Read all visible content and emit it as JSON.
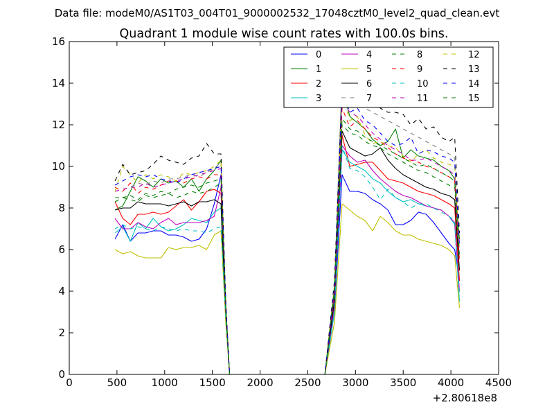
{
  "header": {
    "suptitle": "Data file: modeM0/AS1T03_004T01_9000002532_17048cztM0_level2_quad_clean.evt"
  },
  "chart_data": {
    "type": "line",
    "title": "Quadrant 1 module wise count rates with 100.0s bins.",
    "xlabel": "",
    "ylabel": "",
    "xlim": [
      0,
      4500
    ],
    "ylim": [
      0,
      16
    ],
    "x_ticks": [
      0,
      500,
      1000,
      1500,
      2000,
      2500,
      3000,
      3500,
      4000,
      4500
    ],
    "y_ticks": [
      0,
      2,
      4,
      6,
      8,
      10,
      12,
      14,
      16
    ],
    "x_tick_labels": [
      "0",
      "500",
      "1000",
      "1500",
      "2000",
      "2500",
      "3000",
      "3500",
      "4000",
      "4500"
    ],
    "y_tick_labels": [
      "0",
      "2",
      "4",
      "6",
      "8",
      "10",
      "12",
      "14",
      "16"
    ],
    "x_offset_label": "+2.80618e8",
    "grid": false,
    "legend_position": "top-right",
    "legend_columns": 4,
    "x": [
      480,
      560,
      640,
      720,
      800,
      880,
      960,
      1040,
      1120,
      1200,
      1280,
      1360,
      1440,
      1520,
      1590,
      1640,
      1680,
      2680,
      2780,
      2860,
      2940,
      3020,
      3100,
      3180,
      3260,
      3340,
      3420,
      3500,
      3580,
      3660,
      3740,
      3820,
      3900,
      3980,
      4040,
      4090
    ],
    "series": [
      {
        "name": "0",
        "color": "#0000ff",
        "dashed": false,
        "values": [
          6.5,
          7.2,
          6.4,
          6.8,
          6.8,
          6.9,
          6.9,
          6.7,
          6.7,
          6.6,
          6.4,
          6.5,
          7.0,
          8.2,
          9.6,
          3.0,
          0,
          0,
          3.0,
          9.6,
          8.8,
          8.8,
          8.7,
          8.4,
          8.2,
          7.9,
          7.2,
          7.2,
          7.4,
          7.8,
          7.7,
          7.3,
          6.8,
          6.3,
          6.0,
          4.5
        ]
      },
      {
        "name": "1",
        "color": "#008000",
        "dashed": false,
        "values": [
          7.9,
          8.1,
          8.8,
          9.5,
          9.3,
          9.0,
          9.4,
          9.2,
          9.3,
          9.0,
          9.4,
          8.8,
          9.4,
          9.8,
          10.3,
          3.3,
          0,
          0,
          4.0,
          13.8,
          12.4,
          12.1,
          11.8,
          11.3,
          11.0,
          11.2,
          11.8,
          10.4,
          10.8,
          10.5,
          10.4,
          10.3,
          10.0,
          9.8,
          9.4,
          6.5
        ]
      },
      {
        "name": "2",
        "color": "#ff0000",
        "dashed": false,
        "values": [
          8.3,
          7.5,
          7.2,
          7.7,
          7.7,
          7.8,
          7.7,
          7.8,
          8.1,
          8.4,
          7.9,
          8.3,
          8.8,
          8.9,
          8.7,
          3.0,
          0,
          0,
          3.5,
          11.5,
          10.0,
          10.1,
          10.2,
          10.2,
          9.8,
          9.4,
          9.3,
          9.2,
          9.0,
          8.8,
          8.7,
          8.6,
          8.4,
          8.2,
          8.0,
          4.5
        ]
      },
      {
        "name": "3",
        "color": "#00bfbf",
        "dashed": false,
        "values": [
          6.8,
          7.1,
          6.4,
          7.3,
          7.0,
          7.5,
          7.1,
          6.9,
          7.0,
          7.2,
          7.5,
          7.4,
          7.3,
          7.8,
          8.0,
          2.8,
          0,
          0,
          3.0,
          10.8,
          10.2,
          10.0,
          9.8,
          9.4,
          9.2,
          8.8,
          8.5,
          8.3,
          8.4,
          8.2,
          8.1,
          8.0,
          7.9,
          7.6,
          7.2,
          3.5
        ]
      },
      {
        "name": "4",
        "color": "#bf00bf",
        "dashed": false,
        "values": [
          7.5,
          7.0,
          7.0,
          7.3,
          7.1,
          7.0,
          7.3,
          7.5,
          7.2,
          7.3,
          7.3,
          7.3,
          7.4,
          7.6,
          9.0,
          3.1,
          0,
          0,
          3.3,
          11.0,
          10.5,
          10.2,
          10.3,
          9.8,
          9.4,
          9.1,
          8.8,
          8.6,
          8.5,
          8.3,
          8.1,
          8.0,
          7.9,
          7.6,
          7.3,
          4.0
        ]
      },
      {
        "name": "5",
        "color": "#bfbf00",
        "dashed": false,
        "values": [
          6.0,
          5.8,
          5.9,
          5.7,
          5.6,
          5.6,
          5.6,
          6.1,
          6.0,
          6.1,
          6.1,
          6.2,
          6.0,
          6.7,
          6.9,
          2.5,
          0,
          0,
          2.5,
          8.2,
          7.9,
          7.6,
          7.4,
          6.9,
          7.6,
          7.3,
          6.9,
          6.7,
          6.7,
          6.5,
          6.4,
          6.3,
          6.2,
          6.0,
          5.7,
          3.2
        ]
      },
      {
        "name": "6",
        "color": "#000000",
        "dashed": false,
        "values": [
          7.9,
          8.0,
          8.0,
          8.3,
          8.2,
          8.2,
          8.2,
          8.1,
          8.2,
          8.3,
          8.1,
          8.3,
          8.3,
          8.4,
          8.2,
          2.9,
          0,
          0,
          3.6,
          11.7,
          10.9,
          10.7,
          10.5,
          10.6,
          10.9,
          10.3,
          9.9,
          9.6,
          9.4,
          9.2,
          9.0,
          8.9,
          8.7,
          8.6,
          8.4,
          5.0
        ]
      },
      {
        "name": "7",
        "color": "#808080",
        "dashed": true,
        "values": [
          8.8,
          8.9,
          9.0,
          9.2,
          9.1,
          9.3,
          9.2,
          9.4,
          9.4,
          9.5,
          9.6,
          9.5,
          9.7,
          9.9,
          10.2,
          3.4,
          0,
          0,
          4.2,
          14.5,
          13.2,
          13.1,
          12.8,
          12.6,
          12.4,
          12.2,
          12.0,
          11.8,
          11.6,
          11.4,
          11.2,
          11.0,
          10.8,
          10.6,
          10.4,
          6.5
        ]
      },
      {
        "name": "8",
        "color": "#008000",
        "dashed": true,
        "values": [
          8.5,
          8.5,
          8.4,
          8.3,
          8.6,
          8.5,
          8.6,
          8.7,
          8.5,
          8.6,
          8.8,
          8.7,
          8.8,
          9.0,
          9.2,
          3.1,
          0,
          0,
          3.9,
          12.0,
          11.6,
          11.5,
          11.2,
          11.0,
          10.9,
          10.6,
          10.4,
          10.2,
          10.0,
          9.8,
          9.7,
          9.5,
          9.3,
          9.1,
          9.0,
          5.5
        ]
      },
      {
        "name": "9",
        "color": "#ff0000",
        "dashed": true,
        "values": [
          9.0,
          8.8,
          9.2,
          8.7,
          9.0,
          8.9,
          9.1,
          9.3,
          9.3,
          9.2,
          9.4,
          9.5,
          9.4,
          9.6,
          9.6,
          3.3,
          0,
          0,
          4.0,
          12.8,
          11.9,
          12.2,
          11.8,
          11.4,
          11.2,
          10.9,
          10.6,
          10.4,
          10.3,
          10.2,
          10.0,
          9.9,
          9.7,
          9.5,
          9.3,
          5.4
        ]
      },
      {
        "name": "10",
        "color": "#00bfbf",
        "dashed": true,
        "values": [
          7.0,
          7.2,
          7.0,
          7.1,
          7.0,
          6.9,
          7.1,
          7.0,
          6.9,
          7.0,
          6.9,
          6.9,
          6.8,
          7.0,
          7.1,
          2.7,
          0,
          0,
          3.1,
          11.0,
          9.9,
          9.8,
          9.5,
          9.0,
          8.4,
          8.9,
          8.5,
          8.3,
          8.0,
          8.2,
          8.2,
          8.0,
          7.8,
          7.6,
          7.4,
          3.8
        ]
      },
      {
        "name": "11",
        "color": "#bf00bf",
        "dashed": true,
        "values": [
          8.8,
          8.9,
          9.0,
          9.0,
          9.2,
          9.0,
          9.1,
          9.2,
          9.3,
          9.4,
          9.5,
          9.6,
          9.7,
          9.8,
          9.9,
          3.3,
          0,
          0,
          4.0,
          13.2,
          12.6,
          12.4,
          12.0,
          11.6,
          11.3,
          11.0,
          10.8,
          10.6,
          10.3,
          10.3,
          10.4,
          10.2,
          10.0,
          9.8,
          9.6,
          5.8
        ]
      },
      {
        "name": "12",
        "color": "#bfbf00",
        "dashed": true,
        "values": [
          8.8,
          10.0,
          9.6,
          9.2,
          9.6,
          9.4,
          9.6,
          9.5,
          9.3,
          9.7,
          9.6,
          9.7,
          9.8,
          10.0,
          10.3,
          3.4,
          0,
          0,
          4.3,
          13.5,
          12.2,
          12.4,
          11.5,
          11.1,
          11.2,
          11.0,
          10.9,
          10.5,
          10.2,
          10.6,
          10.8,
          10.4,
          10.2,
          10.1,
          10.0,
          6.0
        ]
      },
      {
        "name": "13",
        "color": "#000000",
        "dashed": true,
        "values": [
          9.3,
          10.1,
          9.6,
          9.7,
          9.8,
          10.1,
          10.5,
          10.3,
          10.2,
          10.1,
          10.4,
          10.5,
          11.1,
          10.6,
          10.6,
          3.5,
          0,
          0,
          4.5,
          14.0,
          13.3,
          13.4,
          13.0,
          13.2,
          12.8,
          12.6,
          12.6,
          12.5,
          12.0,
          12.3,
          11.8,
          11.9,
          11.4,
          11.2,
          11.4,
          6.8
        ]
      },
      {
        "name": "14",
        "color": "#0000ff",
        "dashed": true,
        "values": [
          9.1,
          9.3,
          9.5,
          9.6,
          9.5,
          9.6,
          9.4,
          9.3,
          9.2,
          9.4,
          9.6,
          9.7,
          9.8,
          9.9,
          10.0,
          3.4,
          0,
          0,
          4.2,
          13.6,
          12.6,
          12.8,
          12.2,
          12.0,
          11.6,
          11.2,
          11.0,
          11.1,
          11.4,
          10.6,
          10.8,
          10.7,
          10.5,
          10.4,
          10.2,
          6.2
        ]
      },
      {
        "name": "15",
        "color": "#008000",
        "dashed": true,
        "values": [
          8.3,
          8.5,
          8.6,
          8.4,
          8.7,
          8.6,
          8.8,
          8.7,
          8.9,
          9.0,
          9.1,
          9.0,
          9.2,
          9.3,
          9.4,
          3.2,
          0,
          0,
          4.1,
          12.3,
          11.8,
          11.7,
          11.4,
          11.2,
          11.0,
          10.8,
          10.6,
          10.4,
          10.2,
          10.0,
          10.1,
          9.9,
          9.7,
          9.5,
          9.3,
          5.6
        ]
      }
    ]
  }
}
